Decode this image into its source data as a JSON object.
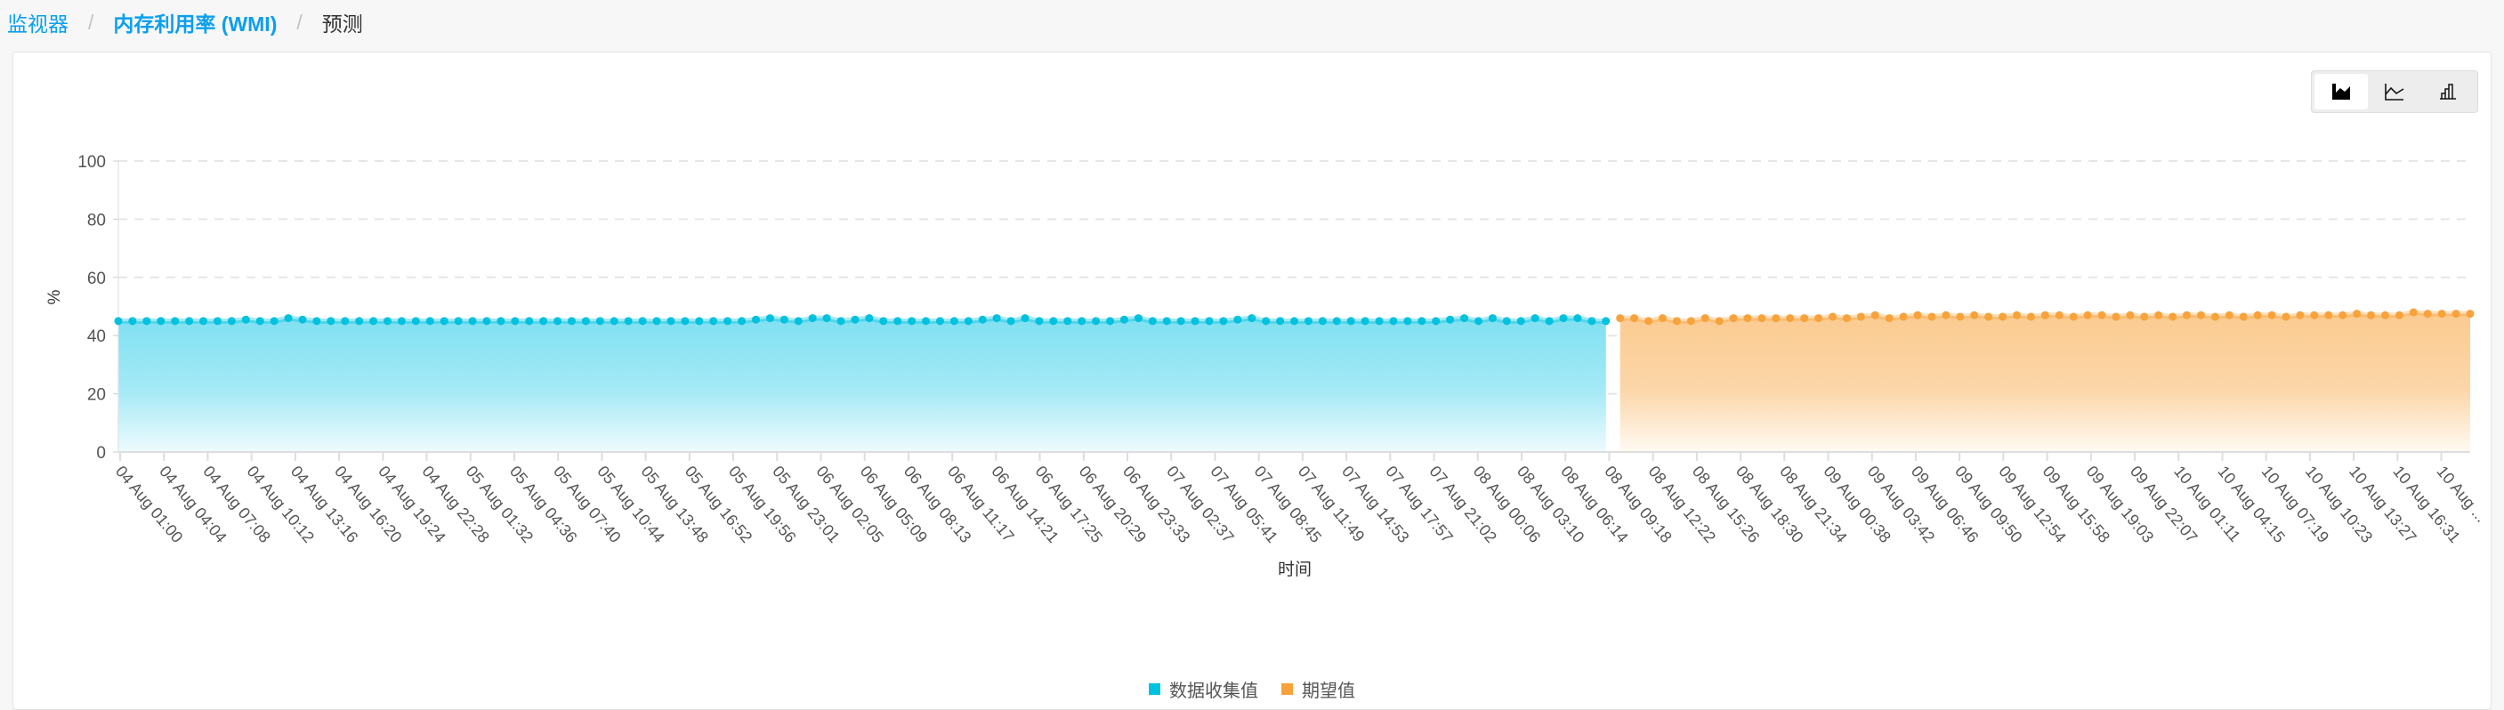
{
  "breadcrumb": {
    "items": [
      "监视器",
      "内存利用率 (WMI)",
      "预测"
    ],
    "separator": "/"
  },
  "toolbar": {
    "buttons": [
      {
        "icon": "area-chart-icon",
        "active": true
      },
      {
        "icon": "line-chart-icon",
        "active": false
      },
      {
        "icon": "bar-chart-icon",
        "active": false
      }
    ]
  },
  "colors": {
    "collected": "#00c1de",
    "expected": "#f7a23b",
    "link": "#0a9ff0"
  },
  "chart_data": {
    "type": "area",
    "xlabel": "时间",
    "ylabel": "%",
    "ylim": [
      0,
      100
    ],
    "yticks": [
      0,
      20,
      40,
      60,
      80,
      100
    ],
    "grid": true,
    "legend_position": "bottom",
    "xtick_labels": [
      "04 Aug 01:00",
      "04 Aug 04:04",
      "04 Aug 07:08",
      "04 Aug 10:12",
      "04 Aug 13:16",
      "04 Aug 16:20",
      "04 Aug 19:24",
      "04 Aug 22:28",
      "05 Aug 01:32",
      "05 Aug 04:36",
      "05 Aug 07:40",
      "05 Aug 10:44",
      "05 Aug 13:48",
      "05 Aug 16:52",
      "05 Aug 19:56",
      "05 Aug 23:01",
      "06 Aug 02:05",
      "06 Aug 05:09",
      "06 Aug 08:13",
      "06 Aug 11:17",
      "06 Aug 14:21",
      "06 Aug 17:25",
      "06 Aug 20:29",
      "06 Aug 23:33",
      "07 Aug 02:37",
      "07 Aug 05:41",
      "07 Aug 08:45",
      "07 Aug 11:49",
      "07 Aug 14:53",
      "07 Aug 17:57",
      "07 Aug 21:02",
      "08 Aug 00:06",
      "08 Aug 03:10",
      "08 Aug 06:14",
      "08 Aug 09:18",
      "08 Aug 12:22",
      "08 Aug 15:26",
      "08 Aug 18:30",
      "08 Aug 21:34",
      "09 Aug 00:38",
      "09 Aug 03:42",
      "09 Aug 06:46",
      "09 Aug 09:50",
      "09 Aug 12:54",
      "09 Aug 15:58",
      "09 Aug 19:03",
      "09 Aug 22:07",
      "10 Aug 01:11",
      "10 Aug 04:15",
      "10 Aug 07:19",
      "10 Aug 10:23",
      "10 Aug 13:27",
      "10 Aug 16:31",
      "10 Aug ..."
    ],
    "series": [
      {
        "name": "数据收集值",
        "color": "#00c1de",
        "values": [
          45,
          45,
          45,
          45,
          45,
          45,
          45,
          45,
          45,
          45.5,
          45,
          45,
          46,
          45.5,
          45,
          45,
          45,
          45,
          45,
          45,
          45,
          45,
          45,
          45,
          45,
          45,
          45,
          45,
          45,
          45,
          45,
          45,
          45,
          45,
          45,
          45,
          45,
          45,
          45,
          45,
          45,
          45,
          45,
          45,
          45,
          45.5,
          46,
          45.5,
          45,
          46,
          46,
          45,
          45.5,
          46,
          45,
          45,
          45,
          45,
          45,
          45,
          45,
          45.5,
          46,
          45,
          46,
          45,
          45,
          45,
          45,
          45,
          45,
          45.5,
          46,
          45,
          45,
          45,
          45,
          45,
          45,
          45.5,
          46,
          45,
          45,
          45,
          45,
          45,
          45,
          45,
          45,
          45,
          45,
          45,
          45,
          45,
          45.5,
          46,
          45,
          46,
          45,
          45,
          46,
          45,
          46,
          46,
          45,
          45
        ]
      },
      {
        "name": "期望值",
        "color": "#f7a23b",
        "values": [
          46,
          46,
          45,
          46,
          45,
          45,
          46,
          45,
          46,
          46,
          46,
          46,
          46,
          46,
          46,
          46.5,
          46,
          46.5,
          47,
          46,
          46.5,
          47,
          46.5,
          47,
          46.5,
          47,
          46.5,
          46.5,
          47,
          46.5,
          47,
          47,
          46.5,
          47,
          47,
          46.5,
          47,
          46.5,
          47,
          46.5,
          47,
          47,
          46.5,
          47,
          46.5,
          47,
          47,
          46.5,
          47,
          47,
          47,
          47,
          47.5,
          47,
          47,
          47,
          48,
          47.5,
          47.5,
          47.5,
          47.5
        ]
      }
    ]
  }
}
